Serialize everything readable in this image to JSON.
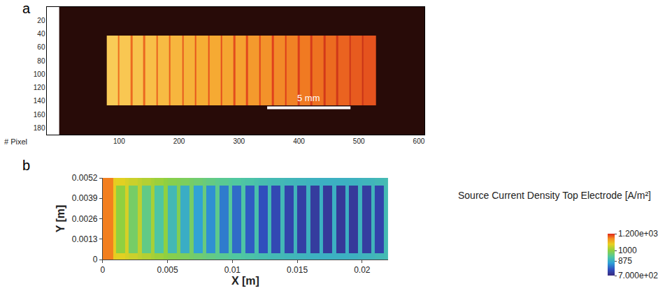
{
  "chart_data": [
    {
      "type": "heatmap",
      "label": "a",
      "x_label": "# Pixel",
      "x_edges": [
        0,
        79,
        98,
        100,
        119,
        122,
        140,
        143,
        162,
        165,
        183,
        186,
        205,
        208,
        226,
        229,
        248,
        251,
        269,
        272,
        291,
        294,
        312,
        315,
        334,
        336,
        355,
        358,
        377,
        379,
        398,
        401,
        419,
        422,
        441,
        444,
        462,
        465,
        484,
        487,
        505,
        508,
        529,
        610
      ],
      "y_edges": [
        0,
        43,
        146,
        190
      ],
      "z": [
        [
          0.08,
          0.08,
          0.08,
          0.08,
          0.08,
          0.08,
          0.08,
          0.08,
          0.08,
          0.08,
          0.08,
          0.08,
          0.08,
          0.08,
          0.08,
          0.08,
          0.08,
          0.08,
          0.08,
          0.08,
          0.08,
          0.08,
          0.08,
          0.08,
          0.08,
          0.08,
          0.08,
          0.08,
          0.08,
          0.08,
          0.08,
          0.08,
          0.08,
          0.08,
          0.08,
          0.08,
          0.08,
          0.08,
          0.08,
          0.08,
          0.08,
          0.08,
          0.08
        ],
        [
          0.08,
          0.95,
          0.72,
          0.94,
          0.71,
          0.93,
          0.7,
          0.92,
          0.69,
          0.91,
          0.68,
          0.9,
          0.67,
          0.89,
          0.66,
          0.88,
          0.65,
          0.87,
          0.64,
          0.86,
          0.63,
          0.85,
          0.62,
          0.83,
          0.61,
          0.81,
          0.6,
          0.79,
          0.59,
          0.77,
          0.58,
          0.75,
          0.57,
          0.73,
          0.56,
          0.71,
          0.55,
          0.69,
          0.54,
          0.67,
          0.53,
          0.65,
          0.08
        ],
        [
          0.08,
          0.08,
          0.08,
          0.08,
          0.08,
          0.08,
          0.08,
          0.08,
          0.08,
          0.08,
          0.08,
          0.08,
          0.08,
          0.08,
          0.08,
          0.08,
          0.08,
          0.08,
          0.08,
          0.08,
          0.08,
          0.08,
          0.08,
          0.08,
          0.08,
          0.08,
          0.08,
          0.08,
          0.08,
          0.08,
          0.08,
          0.08,
          0.08,
          0.08,
          0.08,
          0.08,
          0.08,
          0.08,
          0.08,
          0.08,
          0.08,
          0.08,
          0.08
        ]
      ],
      "z_range": [
        0,
        1
      ],
      "xlim": [
        -20,
        610
      ],
      "ylim": [
        190,
        0
      ],
      "xticks": [
        100,
        200,
        300,
        400,
        500,
        600
      ],
      "yticks": [
        20,
        40,
        60,
        80,
        100,
        120,
        140,
        160,
        180
      ],
      "scale_bar": {
        "label": "5 mm",
        "x": [
          347,
          486
        ],
        "y": 150
      }
    },
    {
      "type": "heatmap",
      "label": "b",
      "x_label": "X [m]",
      "y_label": "Y [m]",
      "x_edges": [
        0,
        0.0008,
        0.001,
        0.0017,
        0.002,
        0.0027,
        0.003,
        0.0037,
        0.004,
        0.0047,
        0.005,
        0.0057,
        0.006,
        0.0067,
        0.007,
        0.0077,
        0.008,
        0.0087,
        0.009,
        0.0097,
        0.01,
        0.0107,
        0.011,
        0.0117,
        0.012,
        0.0127,
        0.013,
        0.0137,
        0.014,
        0.0147,
        0.015,
        0.0157,
        0.016,
        0.0167,
        0.017,
        0.0177,
        0.018,
        0.0187,
        0.019,
        0.0197,
        0.02,
        0.0207,
        0.021,
        0.0217,
        0.022
      ],
      "y_edges": [
        0,
        0.0004,
        0.0047,
        0.0052
      ],
      "z": [
        [
          1150,
          1080,
          1070,
          1060,
          1050,
          1040,
          1030,
          1020,
          1010,
          1000,
          990,
          985,
          978,
          970,
          962,
          955,
          948,
          940,
          935,
          930,
          925,
          920,
          915,
          910,
          905,
          900,
          898,
          895,
          892,
          890,
          888,
          885,
          882,
          880,
          880,
          880,
          880,
          880,
          882,
          885,
          888,
          890,
          895,
          900
        ],
        [
          1150,
          1080,
          1000,
          1060,
          970,
          1040,
          945,
          1020,
          920,
          1000,
          895,
          985,
          875,
          970,
          855,
          955,
          835,
          940,
          815,
          930,
          800,
          920,
          785,
          910,
          772,
          900,
          760,
          895,
          750,
          890,
          742,
          885,
          735,
          880,
          730,
          880,
          728,
          880,
          730,
          885,
          738,
          890,
          750,
          900
        ],
        [
          1150,
          1080,
          1070,
          1060,
          1050,
          1040,
          1030,
          1020,
          1010,
          1000,
          990,
          985,
          978,
          970,
          962,
          955,
          948,
          940,
          935,
          930,
          925,
          920,
          915,
          910,
          905,
          900,
          898,
          895,
          892,
          890,
          888,
          885,
          882,
          880,
          880,
          880,
          880,
          880,
          882,
          885,
          888,
          890,
          895,
          900
        ]
      ],
      "xlim": [
        0,
        0.022
      ],
      "ylim": [
        0,
        0.0052
      ],
      "xticks": [
        0,
        0.005,
        0.01,
        0.015,
        0.02
      ],
      "yticks": [
        0,
        0.0013,
        0.0026,
        0.0039,
        0.0052
      ],
      "colorbar": {
        "title": "Source Current Density Top Electrode [A/m²]",
        "range": [
          700,
          1200
        ],
        "ticks": [
          {
            "value": 700,
            "label": "7.000e+02"
          },
          875,
          1000,
          {
            "value": 1200,
            "label": "1.200e+03"
          }
        ]
      }
    }
  ]
}
